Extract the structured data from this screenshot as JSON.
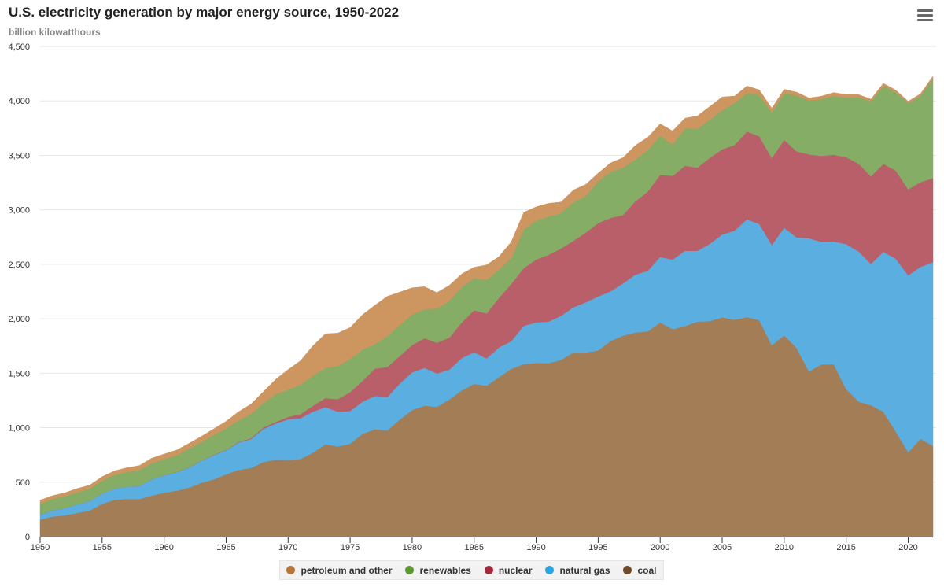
{
  "chart_data": {
    "type": "area",
    "stacked": true,
    "title": "U.S. electricity generation by major energy source, 1950-2022",
    "subtitle": "billion kilowatthours",
    "xlabel": "",
    "ylabel": "billion kilowatthours",
    "xlim": [
      1950,
      2022
    ],
    "ylim": [
      0,
      4500
    ],
    "x_ticks": [
      "1950",
      "1955",
      "1960",
      "1965",
      "1970",
      "1975",
      "1980",
      "1985",
      "1990",
      "1995",
      "2000",
      "2005",
      "2010",
      "2015",
      "2020"
    ],
    "y_ticks": [
      "0",
      "500",
      "1,000",
      "1,500",
      "2,000",
      "2,500",
      "3,000",
      "3,500",
      "4,000",
      "4,500"
    ],
    "grid": "horizontal",
    "legend_position": "bottom",
    "x": [
      1950,
      1951,
      1952,
      1953,
      1954,
      1955,
      1956,
      1957,
      1958,
      1959,
      1960,
      1961,
      1962,
      1963,
      1964,
      1965,
      1966,
      1967,
      1968,
      1969,
      1970,
      1971,
      1972,
      1973,
      1974,
      1975,
      1976,
      1977,
      1978,
      1979,
      1980,
      1981,
      1982,
      1983,
      1984,
      1985,
      1986,
      1987,
      1988,
      1989,
      1990,
      1991,
      1992,
      1993,
      1994,
      1995,
      1996,
      1997,
      1998,
      1999,
      2000,
      2001,
      2002,
      2003,
      2004,
      2005,
      2006,
      2007,
      2008,
      2009,
      2010,
      2011,
      2012,
      2013,
      2014,
      2015,
      2016,
      2017,
      2018,
      2019,
      2020,
      2021,
      2022
    ],
    "series": [
      {
        "name": "coal",
        "color": "#6f4a26",
        "fill": "#a37d55",
        "values": [
          155,
          185,
          195,
          219,
          239,
          301,
          338,
          346,
          344,
          378,
          403,
          422,
          450,
          494,
          526,
          571,
          613,
          630,
          685,
          706,
          704,
          713,
          771,
          848,
          828,
          853,
          944,
          985,
          976,
          1075,
          1162,
          1203,
          1192,
          1259,
          1342,
          1402,
          1386,
          1464,
          1541,
          1584,
          1594,
          1592,
          1622,
          1690,
          1691,
          1709,
          1796,
          1845,
          1874,
          1884,
          1966,
          1904,
          1933,
          1974,
          1978,
          2013,
          1991,
          2016,
          1986,
          1756,
          1847,
          1733,
          1514,
          1581,
          1582,
          1352,
          1239,
          1206,
          1146,
          965,
          774,
          898,
          832
        ]
      },
      {
        "name": "natural gas",
        "color": "#2aa6e4",
        "fill": "#5aaee0",
        "values": [
          45,
          57,
          68,
          79,
          89,
          95,
          104,
          114,
          120,
          150,
          158,
          169,
          184,
          202,
          223,
          222,
          251,
          265,
          304,
          333,
          373,
          374,
          376,
          341,
          320,
          300,
          295,
          306,
          305,
          329,
          346,
          346,
          305,
          274,
          297,
          292,
          249,
          273,
          253,
          352,
          373,
          382,
          404,
          415,
          460,
          496,
          455,
          479,
          531,
          556,
          601,
          639,
          691,
          650,
          710,
          761,
          817,
          897,
          883,
          921,
          988,
          1014,
          1226,
          1125,
          1127,
          1334,
          1379,
          1297,
          1469,
          1586,
          1624,
          1579,
          1687
        ]
      },
      {
        "name": "nuclear",
        "color": "#a3293a",
        "fill": "#b95f6a",
        "values": [
          0,
          0,
          0,
          0,
          0,
          0,
          0,
          0,
          0.2,
          0.2,
          0.5,
          1.7,
          2.3,
          3.2,
          3.3,
          3.7,
          5.5,
          7.7,
          12.5,
          13.9,
          21.8,
          38,
          54,
          83,
          114,
          173,
          191,
          251,
          276,
          255,
          251,
          273,
          283,
          294,
          328,
          384,
          414,
          455,
          527,
          529,
          577,
          613,
          619,
          610,
          640,
          673,
          675,
          629,
          673,
          728,
          754,
          769,
          780,
          764,
          789,
          782,
          787,
          806,
          806,
          799,
          807,
          790,
          769,
          789,
          797,
          797,
          806,
          805,
          807,
          809,
          790,
          778,
          772
        ]
      },
      {
        "name": "renewables",
        "color": "#5a9a2e",
        "fill": "#86ad66",
        "values": [
          101,
          105,
          110,
          109,
          113,
          117,
          126,
          133,
          148,
          145,
          149,
          153,
          172,
          169,
          180,
          197,
          198,
          225,
          226,
          254,
          251,
          270,
          277,
          276,
          305,
          304,
          288,
          224,
          284,
          283,
          279,
          267,
          313,
          336,
          325,
          295,
          308,
          261,
          237,
          354,
          357,
          353,
          326,
          353,
          337,
          384,
          422,
          433,
          385,
          380,
          357,
          288,
          343,
          355,
          351,
          358,
          385,
          352,
          380,
          417,
          427,
          513,
          495,
          521,
          541,
          547,
          610,
          687,
          714,
          720,
          791,
          792,
          913
        ]
      },
      {
        "name": "petroleum and other",
        "color": "#b5763a",
        "fill": "#cd955f",
        "values": [
          34,
          29,
          30,
          35,
          32,
          37,
          36,
          40,
          40,
          47,
          48,
          49,
          48,
          52,
          57,
          65,
          79,
          89,
          104,
          138,
          184,
          220,
          274,
          314,
          301,
          289,
          320,
          358,
          365,
          303,
          246,
          206,
          147,
          144,
          120,
          100,
          137,
          118,
          149,
          158,
          127,
          120,
          100,
          113,
          105,
          75,
          82,
          93,
          128,
          118,
          111,
          125,
          94,
          119,
          121,
          122,
          64,
          66,
          46,
          39,
          37,
          30,
          23,
          27,
          30,
          28,
          24,
          21,
          25,
          19,
          17,
          19,
          23
        ]
      }
    ],
    "legend": [
      {
        "label": "petroleum and other",
        "color": "#b5763a"
      },
      {
        "label": "renewables",
        "color": "#5a9a2e"
      },
      {
        "label": "nuclear",
        "color": "#a3293a"
      },
      {
        "label": "natural gas",
        "color": "#2aa6e4"
      },
      {
        "label": "coal",
        "color": "#6f4a26"
      }
    ]
  },
  "menu_icon": "hamburger-menu-icon"
}
